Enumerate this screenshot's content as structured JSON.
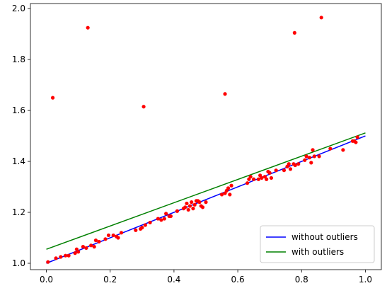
{
  "chart_data": {
    "type": "scatter",
    "xlim": [
      -0.05,
      1.05
    ],
    "ylim": [
      0.975,
      2.02
    ],
    "xticks": [
      0.0,
      0.2,
      0.4,
      0.6,
      0.8,
      1.0
    ],
    "xtick_labels": [
      "0.0",
      "0.2",
      "0.4",
      "0.6",
      "0.8",
      "1.0"
    ],
    "yticks": [
      1.0,
      1.2,
      1.4,
      1.6,
      1.8,
      2.0
    ],
    "ytick_labels": [
      "1.0",
      "1.2",
      "1.4",
      "1.6",
      "1.8",
      "2.0"
    ],
    "grid": false,
    "legend_position": "lower right",
    "series": [
      {
        "name": "without outliers",
        "type": "line",
        "color": "#0000ff",
        "x": [
          0.0,
          1.0
        ],
        "y": [
          1.0,
          1.5
        ]
      },
      {
        "name": "with outliers",
        "type": "line",
        "color": "#008000",
        "x": [
          0.0,
          1.0
        ],
        "y": [
          1.055,
          1.512
        ]
      },
      {
        "type": "scatter",
        "color": "#ff0000",
        "points": [
          [
            0.02,
            1.65
          ],
          [
            0.13,
            1.925
          ],
          [
            0.305,
            1.615
          ],
          [
            0.56,
            1.665
          ],
          [
            0.778,
            1.905
          ],
          [
            0.862,
            1.965
          ],
          [
            0.005,
            1.005
          ],
          [
            0.03,
            1.02
          ],
          [
            0.045,
            1.025
          ],
          [
            0.06,
            1.03
          ],
          [
            0.07,
            1.03
          ],
          [
            0.09,
            1.04
          ],
          [
            0.1,
            1.045
          ],
          [
            0.095,
            1.055
          ],
          [
            0.115,
            1.065
          ],
          [
            0.125,
            1.06
          ],
          [
            0.14,
            1.07
          ],
          [
            0.15,
            1.065
          ],
          [
            0.155,
            1.09
          ],
          [
            0.165,
            1.085
          ],
          [
            0.185,
            1.095
          ],
          [
            0.195,
            1.11
          ],
          [
            0.21,
            1.11
          ],
          [
            0.22,
            1.105
          ],
          [
            0.225,
            1.1
          ],
          [
            0.235,
            1.12
          ],
          [
            0.28,
            1.13
          ],
          [
            0.295,
            1.135
          ],
          [
            0.3,
            1.14
          ],
          [
            0.31,
            1.15
          ],
          [
            0.325,
            1.16
          ],
          [
            0.35,
            1.175
          ],
          [
            0.36,
            1.17
          ],
          [
            0.37,
            1.175
          ],
          [
            0.375,
            1.195
          ],
          [
            0.385,
            1.185
          ],
          [
            0.39,
            1.185
          ],
          [
            0.41,
            1.205
          ],
          [
            0.43,
            1.215
          ],
          [
            0.435,
            1.22
          ],
          [
            0.44,
            1.235
          ],
          [
            0.445,
            1.21
          ],
          [
            0.45,
            1.225
          ],
          [
            0.455,
            1.24
          ],
          [
            0.46,
            1.215
          ],
          [
            0.465,
            1.23
          ],
          [
            0.47,
            1.245
          ],
          [
            0.475,
            1.245
          ],
          [
            0.48,
            1.24
          ],
          [
            0.485,
            1.225
          ],
          [
            0.49,
            1.22
          ],
          [
            0.5,
            1.24
          ],
          [
            0.55,
            1.27
          ],
          [
            0.56,
            1.275
          ],
          [
            0.565,
            1.285
          ],
          [
            0.57,
            1.295
          ],
          [
            0.575,
            1.27
          ],
          [
            0.58,
            1.305
          ],
          [
            0.63,
            1.315
          ],
          [
            0.635,
            1.33
          ],
          [
            0.64,
            1.34
          ],
          [
            0.65,
            1.33
          ],
          [
            0.665,
            1.33
          ],
          [
            0.67,
            1.345
          ],
          [
            0.675,
            1.335
          ],
          [
            0.685,
            1.34
          ],
          [
            0.69,
            1.33
          ],
          [
            0.695,
            1.36
          ],
          [
            0.7,
            1.355
          ],
          [
            0.705,
            1.335
          ],
          [
            0.72,
            1.365
          ],
          [
            0.745,
            1.365
          ],
          [
            0.755,
            1.38
          ],
          [
            0.76,
            1.39
          ],
          [
            0.765,
            1.37
          ],
          [
            0.775,
            1.39
          ],
          [
            0.78,
            1.385
          ],
          [
            0.79,
            1.39
          ],
          [
            0.81,
            1.405
          ],
          [
            0.815,
            1.42
          ],
          [
            0.825,
            1.415
          ],
          [
            0.83,
            1.395
          ],
          [
            0.835,
            1.445
          ],
          [
            0.84,
            1.42
          ],
          [
            0.855,
            1.42
          ],
          [
            0.89,
            1.45
          ],
          [
            0.93,
            1.445
          ],
          [
            0.96,
            1.48
          ],
          [
            0.965,
            1.48
          ],
          [
            0.97,
            1.475
          ],
          [
            0.975,
            1.495
          ]
        ]
      }
    ]
  }
}
